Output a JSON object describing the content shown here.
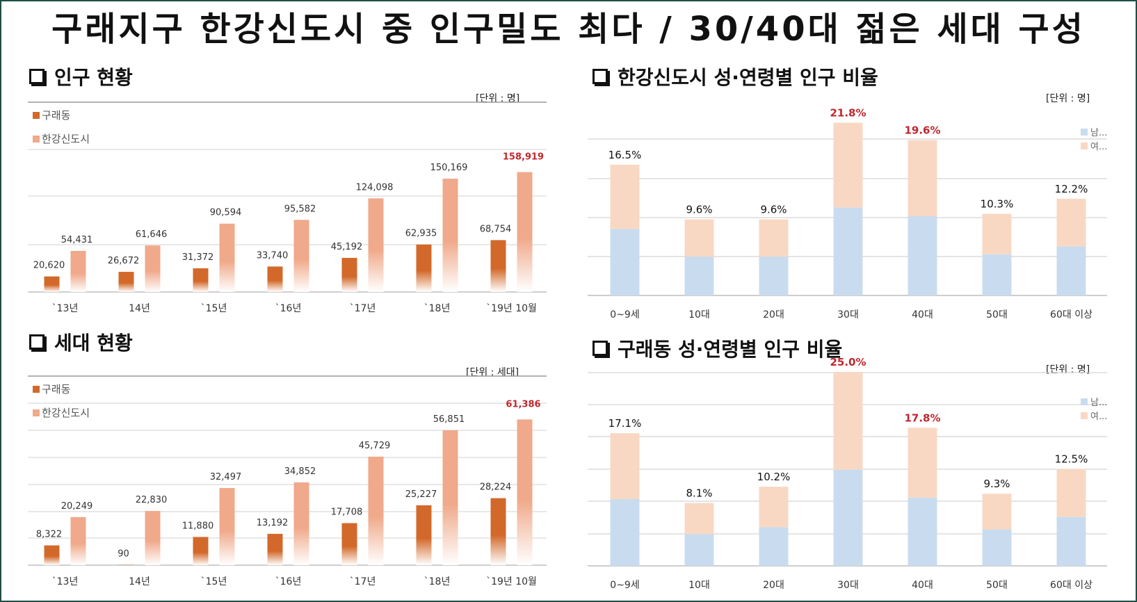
{
  "main_title": "구래지구 한강신도시 중 인구밀도 최다 / 30/40대 젊은 세대 구성",
  "sections": {
    "population": {
      "title": "인구 현황",
      "unit": "[단위 : 명]"
    },
    "households": {
      "title": "세대 현황",
      "unit": "[단위 : 세대]"
    },
    "hangang_age": {
      "title": "한강신도시 성·연령별 인구 비율",
      "unit": "[단위 : 명]"
    },
    "gurae_age": {
      "title": "구래동 성·연령별 인구 비율",
      "unit": "[단위 : 명]"
    }
  },
  "colors": {
    "gurae": "#d2692a",
    "hangang": "#f0a98a",
    "male": "#c9dcef",
    "female": "#f9d8c3",
    "highlight": "#c0272d",
    "frame": "#1f4e45"
  },
  "chart_data": [
    {
      "id": "population",
      "type": "bar",
      "categories": [
        "`13년",
        "14년",
        "`15년",
        "`16년",
        "`17년",
        "`18년",
        "`19년 10월"
      ],
      "series": [
        {
          "name": "구래동",
          "values": [
            20620,
            26672,
            31372,
            33740,
            45192,
            62935,
            68754
          ]
        },
        {
          "name": "한강신도시",
          "values": [
            54431,
            61646,
            90594,
            95582,
            124098,
            150169,
            158919
          ]
        }
      ],
      "labels": [
        [
          "20,620",
          "26,672",
          "31,372",
          "33,740",
          "45,192",
          "62,935",
          "68,754"
        ],
        [
          "54,431",
          "61,646",
          "90,594",
          "95,582",
          "124,098",
          "150,169",
          "158,919"
        ]
      ],
      "highlight": [
        1,
        6
      ],
      "ylim": [
        0,
        200000
      ],
      "grid": true,
      "legend": "top-left"
    },
    {
      "id": "households",
      "type": "bar",
      "categories": [
        "`13년",
        "14년",
        "`15년",
        "`16년",
        "`17년",
        "`18년",
        "`19년 10월"
      ],
      "series": [
        {
          "name": "구래동",
          "values": [
            8322,
            90,
            11880,
            13192,
            17708,
            25227,
            28224
          ]
        },
        {
          "name": "한강신도시",
          "values": [
            20249,
            22830,
            32497,
            34852,
            45729,
            56851,
            61386
          ]
        }
      ],
      "labels": [
        [
          "8,322",
          "90",
          "11,880",
          "13,192",
          "17,708",
          "25,227",
          "28,224"
        ],
        [
          "20,249",
          "22,830",
          "32,497",
          "34,852",
          "45,729",
          "56,851",
          "61,386"
        ]
      ],
      "highlight": [
        1,
        6
      ],
      "ylim": [
        0,
        70000
      ],
      "grid": true,
      "legend": "top-left"
    },
    {
      "id": "hangang_age",
      "type": "bar",
      "stacked": true,
      "categories": [
        "0~9세",
        "10대",
        "20대",
        "30대",
        "40대",
        "50대",
        "60대 이상"
      ],
      "series": [
        {
          "name": "남...",
          "values": [
            8.4,
            4.9,
            4.9,
            11.1,
            10.0,
            5.2,
            6.2
          ]
        },
        {
          "name": "여...",
          "values": [
            8.1,
            4.7,
            4.7,
            10.7,
            9.6,
            5.1,
            6.0
          ]
        }
      ],
      "totals": [
        "16.5%",
        "9.6%",
        "9.6%",
        "21.8%",
        "19.6%",
        "10.3%",
        "12.2%"
      ],
      "highlight_indices": [
        3,
        4
      ],
      "ylim": [
        0,
        25
      ],
      "grid": true,
      "legend": "right"
    },
    {
      "id": "gurae_age",
      "type": "bar",
      "stacked": true,
      "categories": [
        "0~9세",
        "10대",
        "20대",
        "30대",
        "40대",
        "50대",
        "60대 이상"
      ],
      "series": [
        {
          "name": "남...",
          "values": [
            8.6,
            4.1,
            5.0,
            12.4,
            8.8,
            4.7,
            6.3
          ]
        },
        {
          "name": "여...",
          "values": [
            8.5,
            4.0,
            5.2,
            12.6,
            9.0,
            4.6,
            6.2
          ]
        }
      ],
      "totals": [
        "17.1%",
        "8.1%",
        "10.2%",
        "25.0%",
        "17.8%",
        "9.3%",
        "12.5%"
      ],
      "highlight_indices": [
        3,
        4
      ],
      "ylim": [
        0,
        25
      ],
      "grid": true,
      "legend": "right"
    }
  ]
}
